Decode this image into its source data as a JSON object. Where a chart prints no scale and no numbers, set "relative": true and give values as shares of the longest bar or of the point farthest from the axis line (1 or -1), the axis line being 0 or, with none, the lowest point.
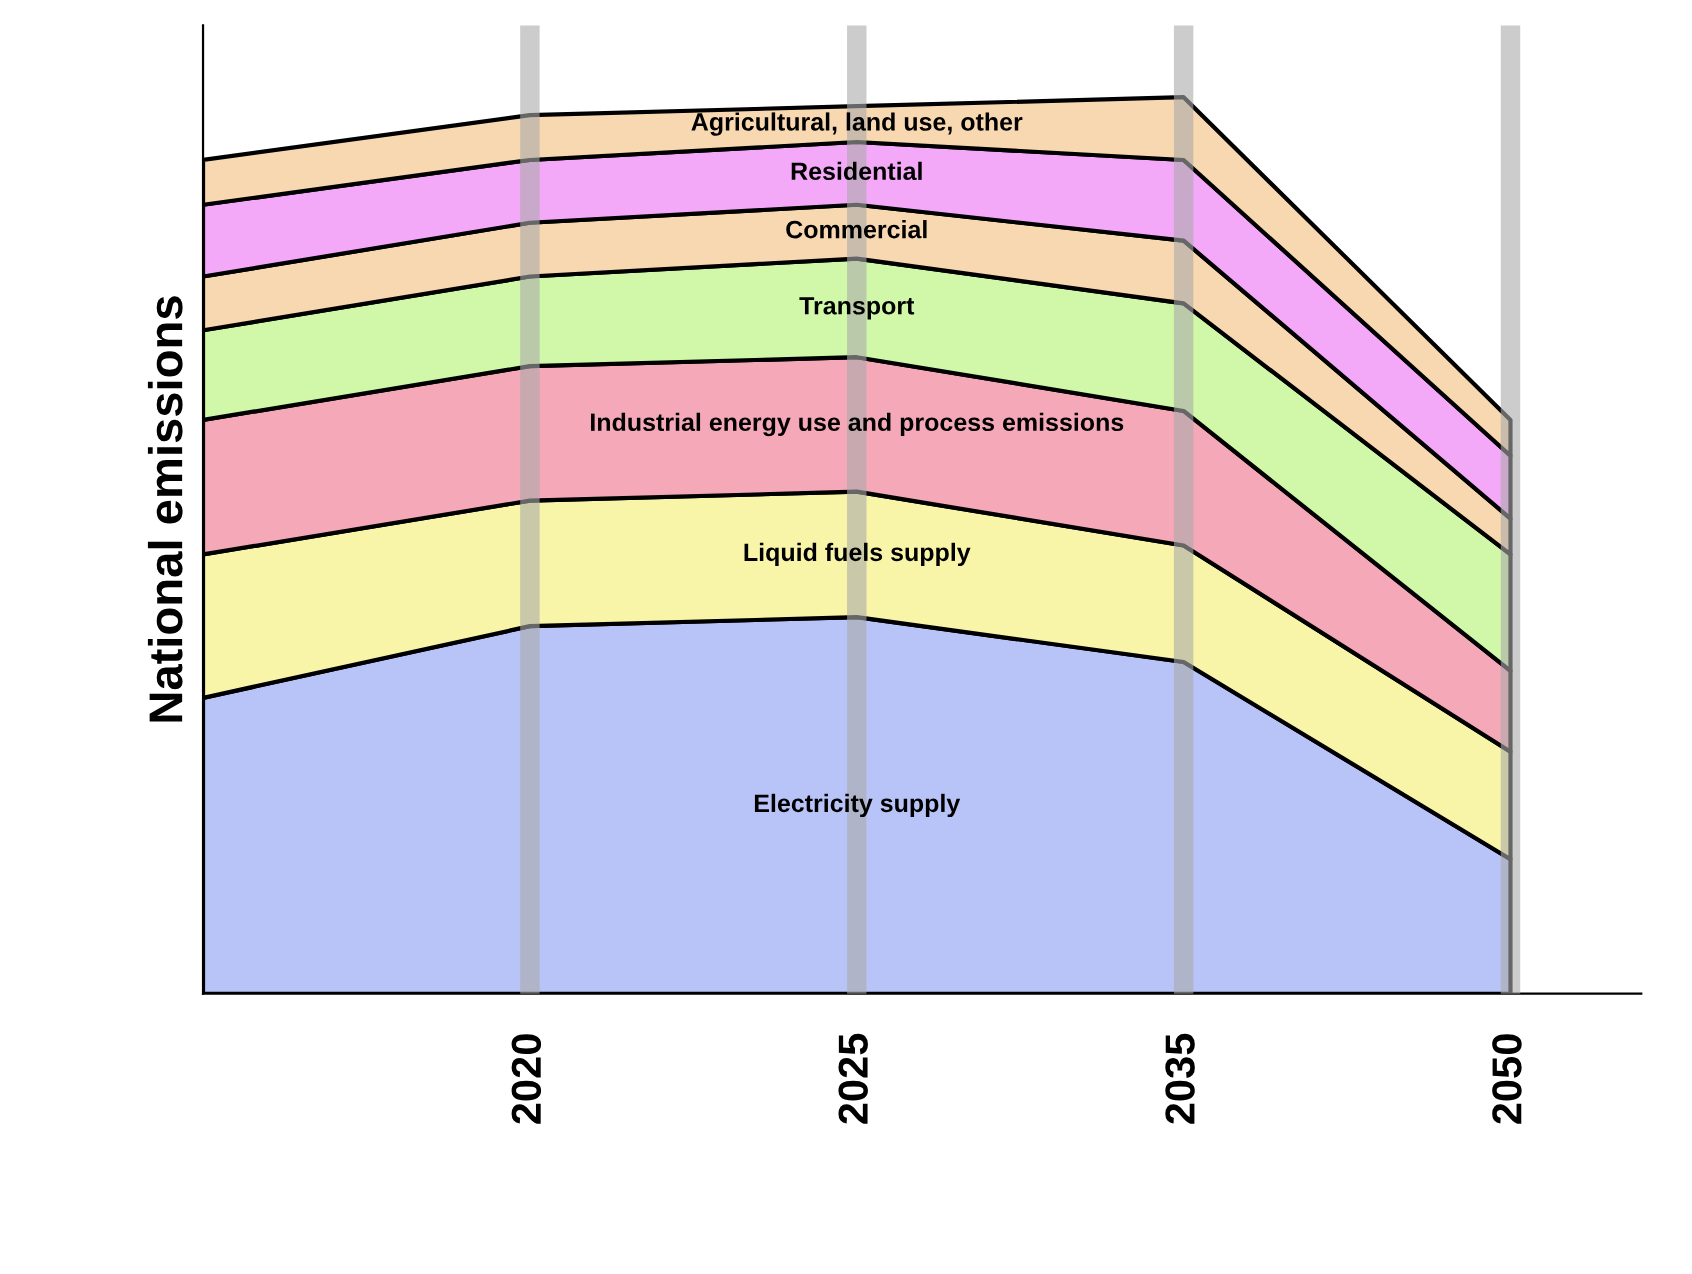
{
  "chart_data": {
    "type": "area",
    "stacked": true,
    "relative": true,
    "ylabel": "National emissions",
    "categories": [
      null,
      "2020",
      "2025",
      "2035",
      "2050"
    ],
    "grid": "x",
    "legend": false,
    "series": [
      {
        "name": "Electricity supply",
        "color": "#b8c4f8",
        "values": [
          0.33,
          0.41,
          0.42,
          0.37,
          0.15
        ]
      },
      {
        "name": "Liquid fuels supply",
        "color": "#f8f4a8",
        "values": [
          0.16,
          0.14,
          0.14,
          0.13,
          0.12
        ]
      },
      {
        "name": "Industrial energy use and process emissions",
        "color": "#f4a8b8",
        "values": [
          0.15,
          0.15,
          0.15,
          0.15,
          0.09
        ]
      },
      {
        "name": "Transport",
        "color": "#d0f8a8",
        "values": [
          0.1,
          0.1,
          0.11,
          0.12,
          0.13
        ]
      },
      {
        "name": "Commercial",
        "color": "#f8d8b0",
        "values": [
          0.06,
          0.06,
          0.06,
          0.07,
          0.04
        ]
      },
      {
        "name": "Residential",
        "color": "#f4a8f8",
        "values": [
          0.08,
          0.07,
          0.07,
          0.09,
          0.07
        ]
      },
      {
        "name": "Agricultural, land use, other",
        "color": "#f8d8b0",
        "values": [
          0.05,
          0.05,
          0.04,
          0.07,
          0.04
        ]
      }
    ]
  }
}
